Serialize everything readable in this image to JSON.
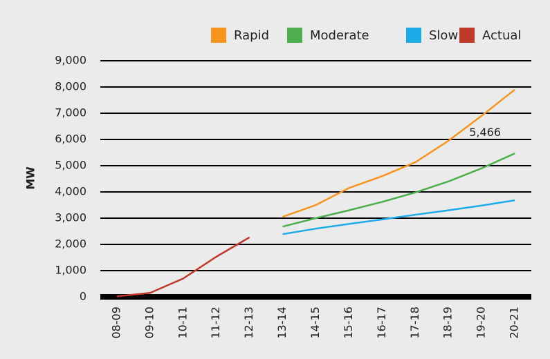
{
  "chart_data": {
    "type": "line",
    "y_label": "MW",
    "categories": [
      "08-09",
      "09-10",
      "10-11",
      "11-12",
      "12-13",
      "13-14",
      "14-15",
      "15-16",
      "16-17",
      "17-18",
      "18-19",
      "19-20",
      "20-21"
    ],
    "series": [
      {
        "name": "Rapid",
        "color": "#f7941d",
        "values": [
          null,
          null,
          null,
          null,
          null,
          3050,
          3500,
          4150,
          4600,
          5130,
          5950,
          6900,
          7900
        ]
      },
      {
        "name": "Moderate",
        "color": "#4cae4c",
        "values": [
          null,
          null,
          null,
          null,
          null,
          2680,
          3000,
          3300,
          3620,
          3980,
          4400,
          4900,
          5466
        ],
        "value_labels": [
          null,
          null,
          null,
          null,
          null,
          null,
          null,
          null,
          null,
          null,
          null,
          null,
          "5,466"
        ]
      },
      {
        "name": "Slow",
        "color": "#1aabe8",
        "values": [
          null,
          null,
          null,
          null,
          null,
          2390,
          2600,
          2780,
          2950,
          3130,
          3300,
          3480,
          3680
        ]
      },
      {
        "name": "Actual",
        "color": "#c0392b",
        "values": [
          20,
          150,
          700,
          1530,
          2270,
          null,
          null,
          null,
          null,
          null,
          null,
          null,
          null
        ]
      }
    ],
    "ylim": [
      0,
      9000
    ],
    "yticks": [
      0,
      {
        "value": 1000,
        "label": "1,000"
      },
      {
        "value": 2000,
        "label": "2,000"
      },
      {
        "value": 3000,
        "label": "3,000"
      },
      {
        "value": 4000,
        "label": "4,000"
      },
      {
        "value": 5000,
        "label": "5,000"
      },
      {
        "value": 6000,
        "label": "6,000"
      },
      {
        "value": 7000,
        "label": "7,000"
      },
      {
        "value": 8000,
        "label": "8,000"
      },
      {
        "value": 9000,
        "label": "9,000"
      }
    ],
    "grid": true
  }
}
